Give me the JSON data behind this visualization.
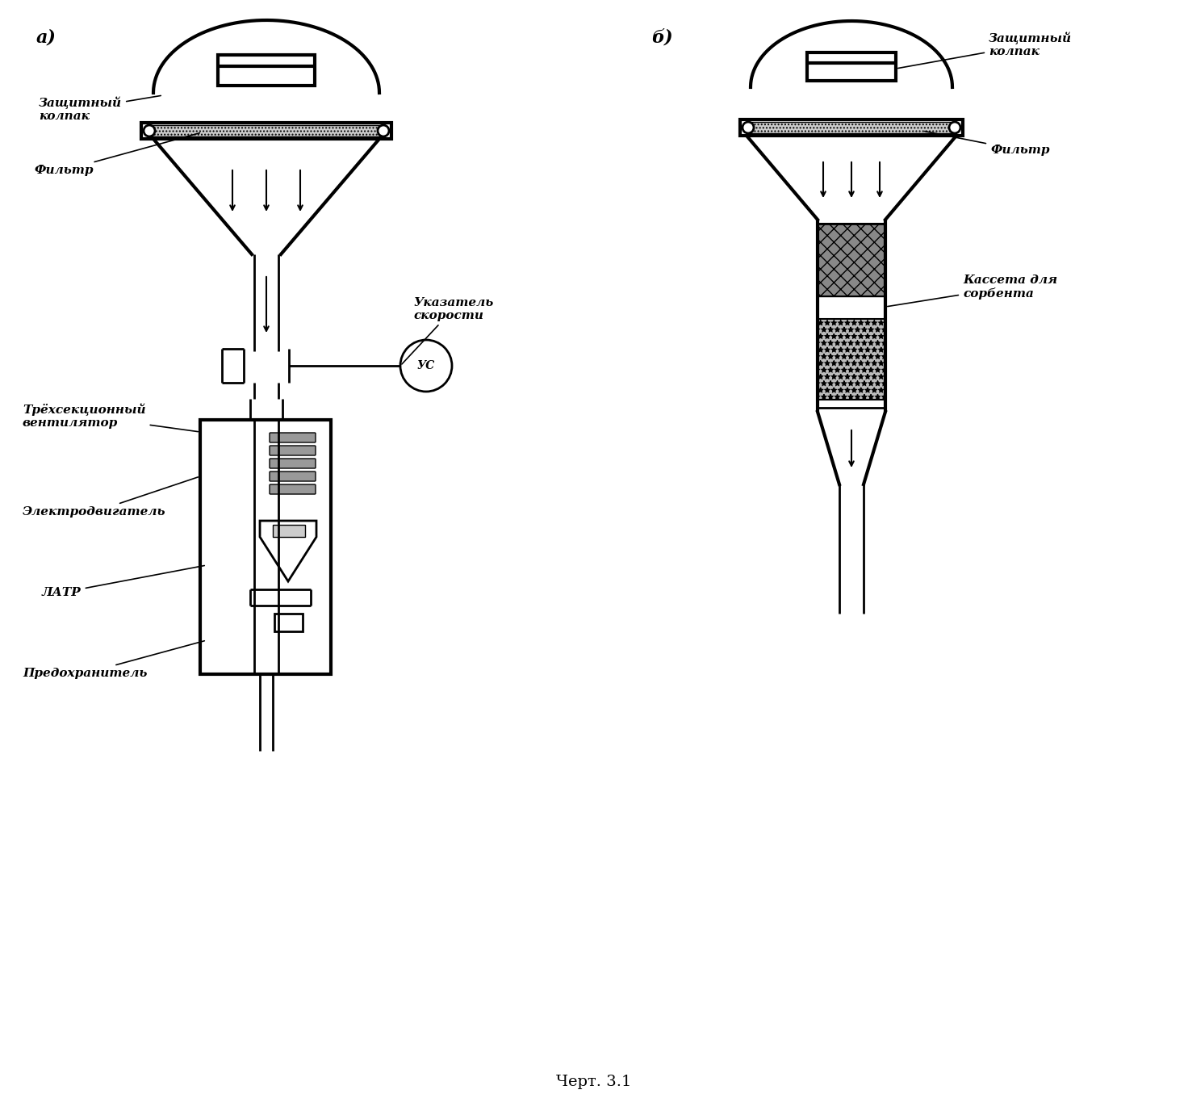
{
  "title": "Черт. 3.1",
  "title_fontsize": 14,
  "bg_color": "#ffffff",
  "label_a": "а)",
  "label_b": "б)",
  "label_fontsize": 16,
  "annotation_fontsize": 11,
  "annotations_a": {
    "zashchitny_kolpak": "Защитный\nколпак",
    "filtr": "Фильтр",
    "ukazatel_skorosti": "Указатель\nскорости",
    "trekhsektsionny": "Трёхсекционный\nвентилятор",
    "elektrodvigatel": "Электродвигатель",
    "latr": "ЛАТР",
    "predokhranitel": "Предохранитель"
  },
  "annotations_b": {
    "zashchitny_kolpak": "Защитный\nколпак",
    "filtr": "Фильтр",
    "kasseta": "Кассета для\nсорбента"
  }
}
